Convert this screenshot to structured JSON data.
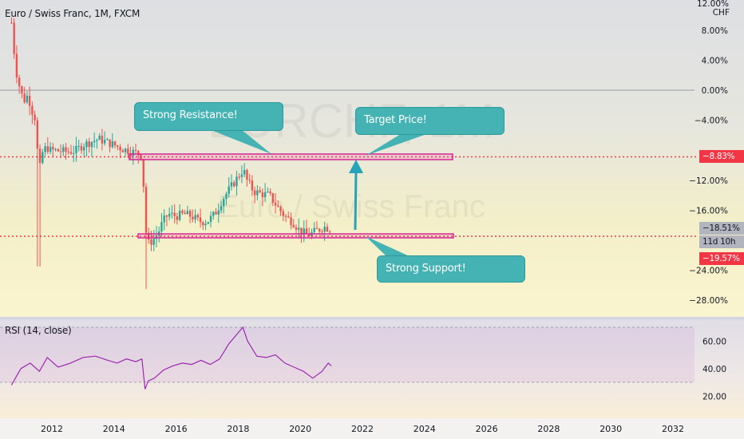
{
  "chart_title": "Euro / Swiss Franc, 1M, FXCM",
  "watermark_symbol": "EURCHF, 1M",
  "watermark_name": "Euro / Swiss Franc",
  "rsi_title": "RSI (14, close)",
  "price_axis_top": "12.00%",
  "price_axis_unit": "CHF",
  "price_tag_resistance": "−8.83%",
  "price_tag_current": "−18.51%",
  "price_tag_countdown": "11d 10h",
  "price_tag_support": "−19.57%",
  "callouts": {
    "resistance": "Strong Resistance!",
    "target": "Target Price!",
    "support": "Strong Support!"
  },
  "colors": {
    "up": "#26a69a",
    "down": "#ef5350",
    "rsi_line": "#9c27b0",
    "level_line": "#e0218a",
    "callout_bg": "#45b3b3",
    "arrow": "#26a3b8"
  },
  "chart_data": [
    {
      "type": "candlestick",
      "title": "Euro / Swiss Franc, 1M, FXCM",
      "y_axis": {
        "unit": "CHF",
        "ticks": [
          "8.00%",
          "4.00%",
          "0.00%",
          "−4.00%",
          "−12.00%",
          "−16.00%",
          "−24.00%",
          "−28.00%"
        ]
      },
      "x_axis": {
        "ticks": [
          "2012",
          "2014",
          "2016",
          "2018",
          "2020",
          "2022",
          "2024",
          "2026",
          "2028",
          "2030",
          "2032"
        ]
      },
      "levels": [
        {
          "label": "Strong Resistance!",
          "value": -8.83
        },
        {
          "label": "Strong Support!",
          "value": -19.57
        }
      ],
      "last_value": -18.51,
      "series_pct": [
        [
          2010.7,
          9.0
        ],
        [
          2010.83,
          3.0
        ],
        [
          2010.92,
          1.0
        ],
        [
          2011.0,
          0.0
        ],
        [
          2011.08,
          -1.5
        ],
        [
          2011.17,
          -1.0
        ],
        [
          2011.25,
          -0.5
        ],
        [
          2011.33,
          -3.0
        ],
        [
          2011.42,
          -2.5
        ],
        [
          2011.5,
          -5.5
        ],
        [
          2011.58,
          -11.5
        ],
        [
          2011.67,
          -8.5
        ],
        [
          2011.75,
          -8.0
        ],
        [
          2011.83,
          -7.5
        ],
        [
          2011.92,
          -8.0
        ],
        [
          2012.0,
          -8.0
        ],
        [
          2012.25,
          -8.1
        ],
        [
          2012.5,
          -8.2
        ],
        [
          2012.75,
          -8.1
        ],
        [
          2013.0,
          -7.3
        ],
        [
          2013.25,
          -6.9
        ],
        [
          2013.5,
          -6.5
        ],
        [
          2013.75,
          -6.9
        ],
        [
          2014.0,
          -7.3
        ],
        [
          2014.25,
          -7.8
        ],
        [
          2014.5,
          -8.1
        ],
        [
          2014.75,
          -8.4
        ],
        [
          2014.92,
          -8.8
        ],
        [
          2015.0,
          -19.0
        ],
        [
          2015.08,
          -20.5
        ],
        [
          2015.25,
          -20.0
        ],
        [
          2015.42,
          -19.0
        ],
        [
          2015.58,
          -17.5
        ],
        [
          2015.75,
          -16.5
        ],
        [
          2016.0,
          -16.8
        ],
        [
          2016.25,
          -16.5
        ],
        [
          2016.5,
          -16.8
        ],
        [
          2016.75,
          -17.5
        ],
        [
          2017.0,
          -17.5
        ],
        [
          2017.25,
          -16.5
        ],
        [
          2017.5,
          -14.5
        ],
        [
          2017.75,
          -13.0
        ],
        [
          2018.0,
          -11.5
        ],
        [
          2018.17,
          -10.5
        ],
        [
          2018.25,
          -11.8
        ],
        [
          2018.5,
          -13.5
        ],
        [
          2018.75,
          -13.8
        ],
        [
          2019.0,
          -14.0
        ],
        [
          2019.25,
          -15.5
        ],
        [
          2019.5,
          -16.8
        ],
        [
          2019.75,
          -17.5
        ],
        [
          2020.0,
          -18.8
        ],
        [
          2020.25,
          -19.3
        ],
        [
          2020.5,
          -18.8
        ],
        [
          2020.75,
          -18.2
        ],
        [
          2021.0,
          -18.5
        ]
      ]
    },
    {
      "type": "line",
      "title": "RSI (14, close)",
      "y_axis": {
        "ticks": [
          "60.00",
          "40.00",
          "20.00"
        ],
        "band": [
          30,
          70
        ]
      },
      "series": [
        {
          "values": [
            [
              2010.7,
              28
            ],
            [
              2011.0,
              40
            ],
            [
              2011.3,
              44
            ],
            [
              2011.6,
              38
            ],
            [
              2011.85,
              48
            ],
            [
              2012.2,
              41
            ],
            [
              2012.6,
              44
            ],
            [
              2013.0,
              48
            ],
            [
              2013.4,
              49
            ],
            [
              2013.8,
              46
            ],
            [
              2014.1,
              44
            ],
            [
              2014.4,
              47
            ],
            [
              2014.7,
              45
            ],
            [
              2014.9,
              47
            ],
            [
              2015.0,
              25
            ],
            [
              2015.1,
              31
            ],
            [
              2015.3,
              33
            ],
            [
              2015.6,
              39
            ],
            [
              2015.9,
              42
            ],
            [
              2016.2,
              44
            ],
            [
              2016.5,
              43
            ],
            [
              2016.8,
              46
            ],
            [
              2017.1,
              43
            ],
            [
              2017.4,
              47
            ],
            [
              2017.7,
              58
            ],
            [
              2018.0,
              66
            ],
            [
              2018.15,
              70
            ],
            [
              2018.3,
              60
            ],
            [
              2018.6,
              49
            ],
            [
              2018.9,
              48
            ],
            [
              2019.2,
              50
            ],
            [
              2019.5,
              44
            ],
            [
              2019.8,
              41
            ],
            [
              2020.1,
              38
            ],
            [
              2020.4,
              33
            ],
            [
              2020.7,
              38
            ],
            [
              2020.9,
              44
            ],
            [
              2021.0,
              42
            ]
          ]
        }
      ]
    }
  ]
}
